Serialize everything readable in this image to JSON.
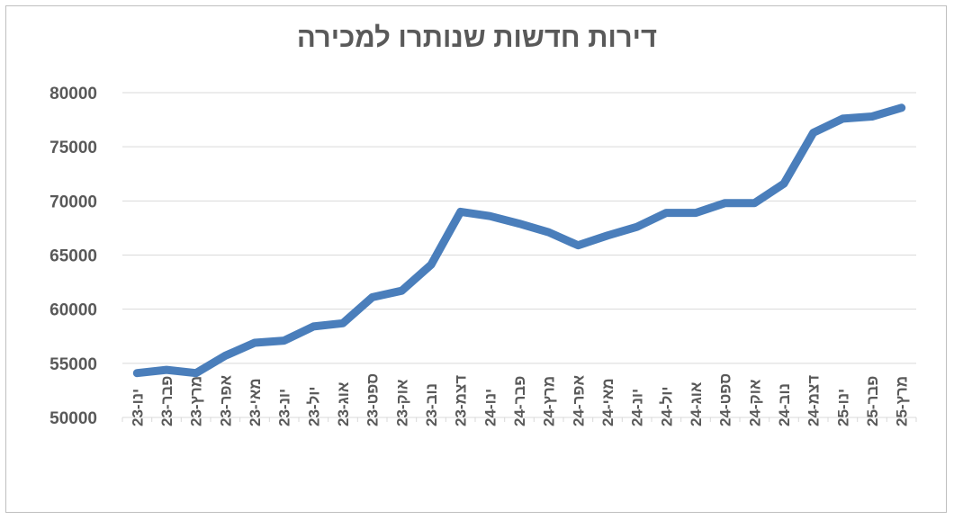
{
  "chart_data": {
    "type": "line",
    "title": "דירות חדשות שנותרו למכירה",
    "xlabel": "",
    "ylabel": "",
    "ylim": [
      50000,
      80000
    ],
    "yticks": [
      "50000",
      "55000",
      "60000",
      "65000",
      "70000",
      "75000",
      "80000"
    ],
    "grid": true,
    "legend": "none",
    "line_color": "#4a7ebb",
    "categories": [
      "ינו-23",
      "פבר-23",
      "מרץ-23",
      "אפר-23",
      "מאי-23",
      "יונ-23",
      "יול-23",
      "אוג-23",
      "ספט-23",
      "אוק-23",
      "נוב-23",
      "דצמ-23",
      "ינו-24",
      "פבר-24",
      "מרץ-24",
      "אפר-24",
      "מאי-24",
      "יונ-24",
      "יול-24",
      "אוג-24",
      "ספט-24",
      "אוק-24",
      "נוב-24",
      "דצמ-24",
      "ינו-25",
      "פבר-25",
      "מרץ-25"
    ],
    "values": [
      54100,
      54400,
      54100,
      55700,
      56900,
      57100,
      58400,
      58700,
      61100,
      61700,
      64100,
      69000,
      68600,
      67900,
      67100,
      65900,
      66800,
      67600,
      68900,
      68900,
      69800,
      69800,
      71600,
      76300,
      77600,
      77800,
      78600
    ]
  }
}
